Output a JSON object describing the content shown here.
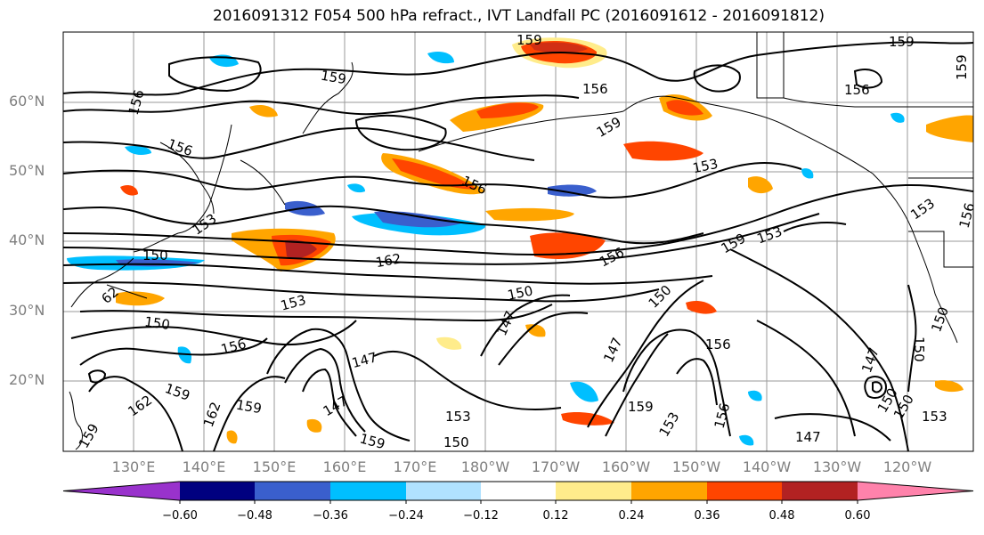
{
  "title": "2016091312 F054 500 hPa refract., IVT Landfall PC (2016091612 - 2016091812)",
  "lat_labels": [
    "60°N",
    "50°N",
    "40°N",
    "30°N",
    "20°N"
  ],
  "lon_labels": [
    "130°E",
    "140°E",
    "150°E",
    "160°E",
    "170°E",
    "180°W",
    "170°W",
    "160°W",
    "150°W",
    "140°W",
    "130°W",
    "120°W"
  ],
  "contour_labels": [
    "159",
    "159",
    "159",
    "156",
    "156",
    "156",
    "159",
    "156",
    "153",
    "156",
    "153",
    "159",
    "153",
    "153",
    "156",
    "150",
    "159",
    "162",
    "156",
    "150",
    "153",
    "62",
    "150",
    "147",
    "150",
    "156",
    "147",
    "147",
    "156",
    "159",
    "162",
    "162",
    "159",
    "147",
    "153",
    "159",
    "150",
    "153",
    "156",
    "147",
    "147",
    "150",
    "150",
    "153",
    "150",
    "150",
    "159",
    "159"
  ],
  "colorbar": {
    "colors": [
      "#9932cc",
      "#000080",
      "#3a5fcd",
      "#00bfff",
      "#b0e2ff",
      "#ffffff",
      "#ffec8b",
      "#ffa500",
      "#ff4500",
      "#b22222",
      "#ff82ab"
    ],
    "ticks": [
      "−0.60",
      "−0.48",
      "−0.36",
      "−0.24",
      "−0.12",
      "0.12",
      "0.24",
      "0.36",
      "0.48",
      "0.60"
    ]
  }
}
